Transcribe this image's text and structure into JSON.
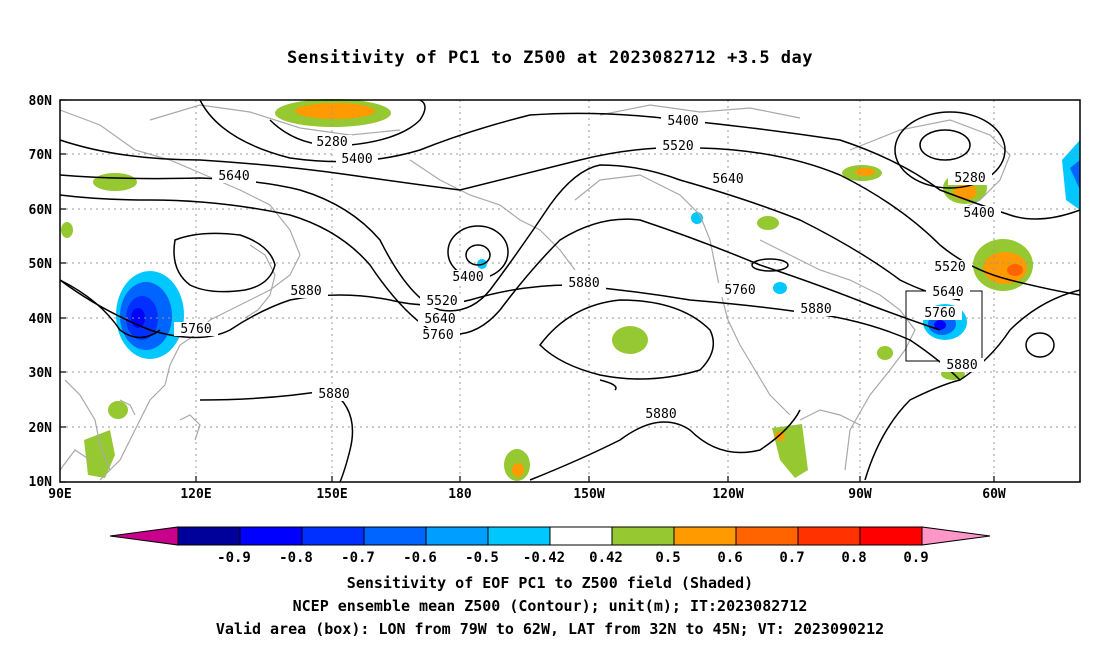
{
  "title": "Sensitivity of PC1 to Z500 at 2023082712 +3.5 day",
  "lat_labels": [
    "80N",
    "70N",
    "60N",
    "50N",
    "40N",
    "30N",
    "20N",
    "10N"
  ],
  "lon_labels": [
    "90E",
    "120E",
    "150E",
    "180",
    "150W",
    "120W",
    "90W",
    "60W"
  ],
  "contour_labels": [
    "5280",
    "5400",
    "5640",
    "5400",
    "5520",
    "5640",
    "5760",
    "5880",
    "5760",
    "5880",
    "5400",
    "5520",
    "5640",
    "5280",
    "5400",
    "5520",
    "5640",
    "5760",
    "5880",
    "5880",
    "5760",
    "5880",
    "5880"
  ],
  "colorbar": {
    "labels": [
      "-0.9",
      "-0.8",
      "-0.7",
      "-0.6",
      "-0.5",
      "-0.42",
      "0.42",
      "0.5",
      "0.6",
      "0.7",
      "0.8",
      "0.9"
    ],
    "colors": [
      "#00009a",
      "#0000ff",
      "#0030ff",
      "#0064ff",
      "#009eff",
      "#00c8ff",
      "#ffffff",
      "#96c832",
      "#ff9a00",
      "#ff6400",
      "#ff3200",
      "#ff0000"
    ],
    "end_low_color": "#c8008c",
    "end_high_color": "#ff96c8"
  },
  "captions": {
    "line1": "Sensitivity of EOF PC1 to Z500 field (Shaded)",
    "line2": "NCEP ensemble mean Z500 (Contour); unit(m); IT:2023082712",
    "line3": "Valid area (box): LON from 79W to 62W, LAT from 32N to 45N; VT: 2023090212"
  }
}
